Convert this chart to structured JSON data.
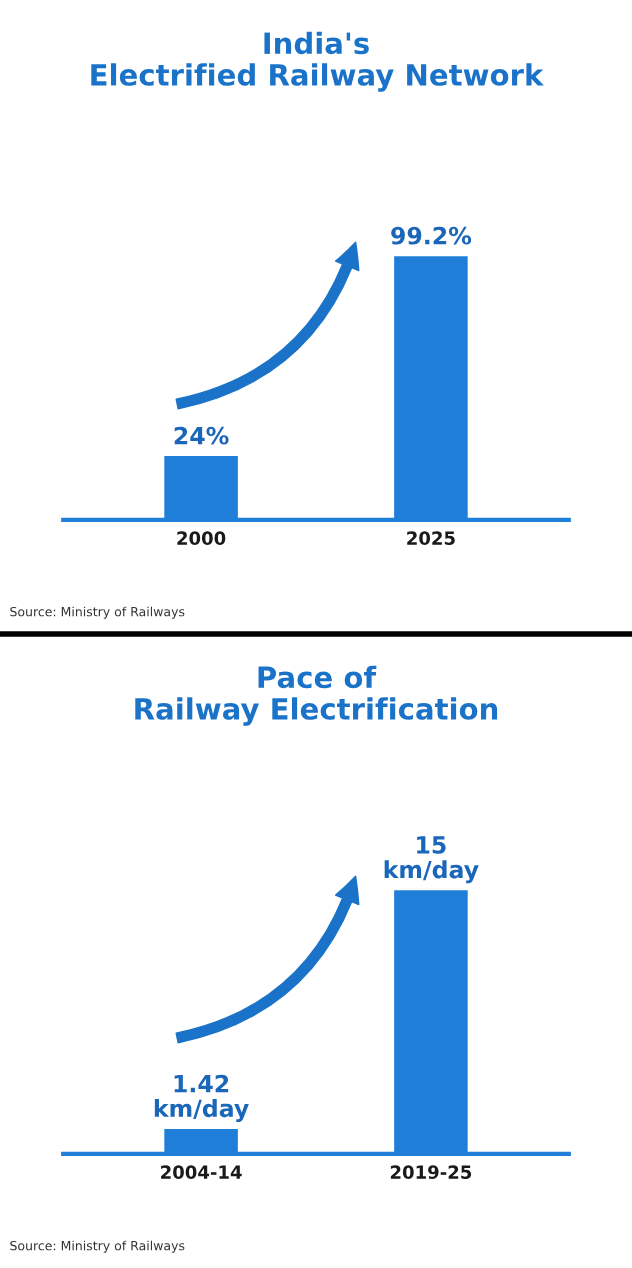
{
  "chart_data": [
    {
      "type": "bar",
      "title": "India's\nElectrified Railway Network",
      "categories": [
        "2000",
        "2025"
      ],
      "values": [
        24,
        99.2
      ],
      "color": "#1f7fd8",
      "value_labels": [
        "24%",
        "99.2%"
      ],
      "tick_labels": "x",
      "grid": false,
      "legend": false,
      "annotations": [
        "Source: Ministry of Railways"
      ]
    },
    {
      "type": "bar",
      "title": "Pace of\nRailway Electrification",
      "categories": [
        "2004-14",
        "2019-25"
      ],
      "values": [
        1.42,
        15
      ],
      "color": "#1f7fd8",
      "value_labels": [
        "1.42\nkm/day",
        "15\nkm/day"
      ],
      "tick_labels": "x",
      "grid": false,
      "legend": false,
      "annotations": [
        "Source: Ministry of Railways"
      ]
    }
  ]
}
